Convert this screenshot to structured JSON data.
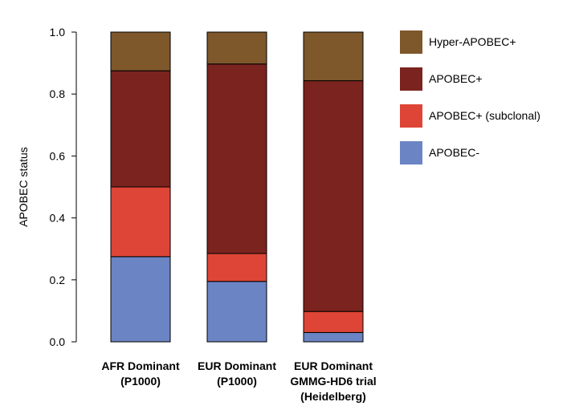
{
  "chart_data": {
    "type": "bar",
    "stacked": true,
    "ylabel": "APOBEC status",
    "ylim": [
      0,
      1.0
    ],
    "yticks": [
      "0.0",
      "0.2",
      "0.4",
      "0.6",
      "0.8",
      "1.0"
    ],
    "grid": false,
    "legend_position": "right",
    "categories": [
      [
        "AFR Dominant",
        "(P1000)"
      ],
      [
        "EUR Dominant",
        "(P1000)"
      ],
      [
        "EUR Dominant",
        "GMMG-HD6 trial",
        "(Heidelberg)"
      ]
    ],
    "series": [
      {
        "name": "APOBEC-",
        "color": "#6b84c4",
        "values": [
          0.275,
          0.195,
          0.03
        ]
      },
      {
        "name": "APOBEC+ (subclonal)",
        "color": "#de4536",
        "values": [
          0.225,
          0.09,
          0.068
        ]
      },
      {
        "name": "APOBEC+",
        "color": "#7b231e",
        "values": [
          0.375,
          0.612,
          0.745
        ]
      },
      {
        "name": "Hyper-APOBEC+",
        "color": "#7e572b",
        "values": [
          0.125,
          0.103,
          0.157
        ]
      }
    ]
  }
}
